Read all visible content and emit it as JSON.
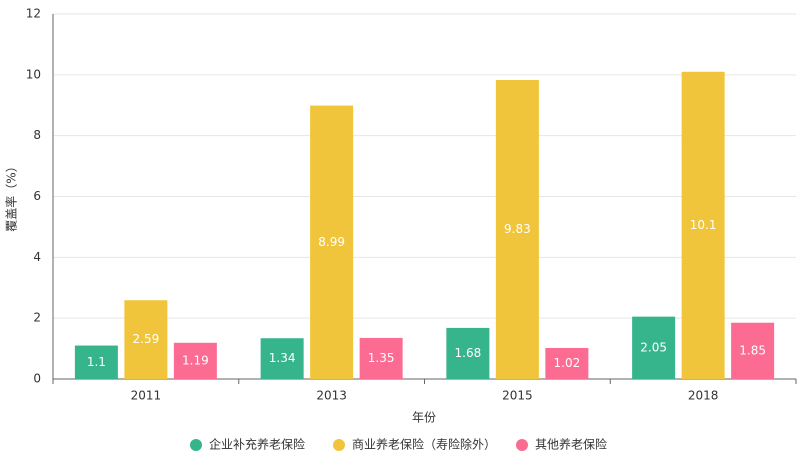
{
  "chart_data": {
    "type": "bar",
    "ylabel": "覆盖率（%）",
    "xlabel": "年份",
    "categories": [
      "2011",
      "2013",
      "2015",
      "2018"
    ],
    "series": [
      {
        "name": "企业补充养老保险",
        "color": "#36b48c",
        "values": [
          1.1,
          1.34,
          1.68,
          2.05
        ]
      },
      {
        "name": "商业养老保险（寿险除外）",
        "color": "#f0c53c",
        "values": [
          2.59,
          8.99,
          9.83,
          10.1
        ]
      },
      {
        "name": "其他养老保险",
        "color": "#fc6b92",
        "values": [
          1.19,
          1.35,
          1.02,
          1.85
        ]
      }
    ],
    "ylim": [
      0,
      12
    ],
    "yticks": [
      0,
      2,
      4,
      6,
      8,
      10,
      12
    ],
    "grid": true,
    "legend": "bottom"
  }
}
